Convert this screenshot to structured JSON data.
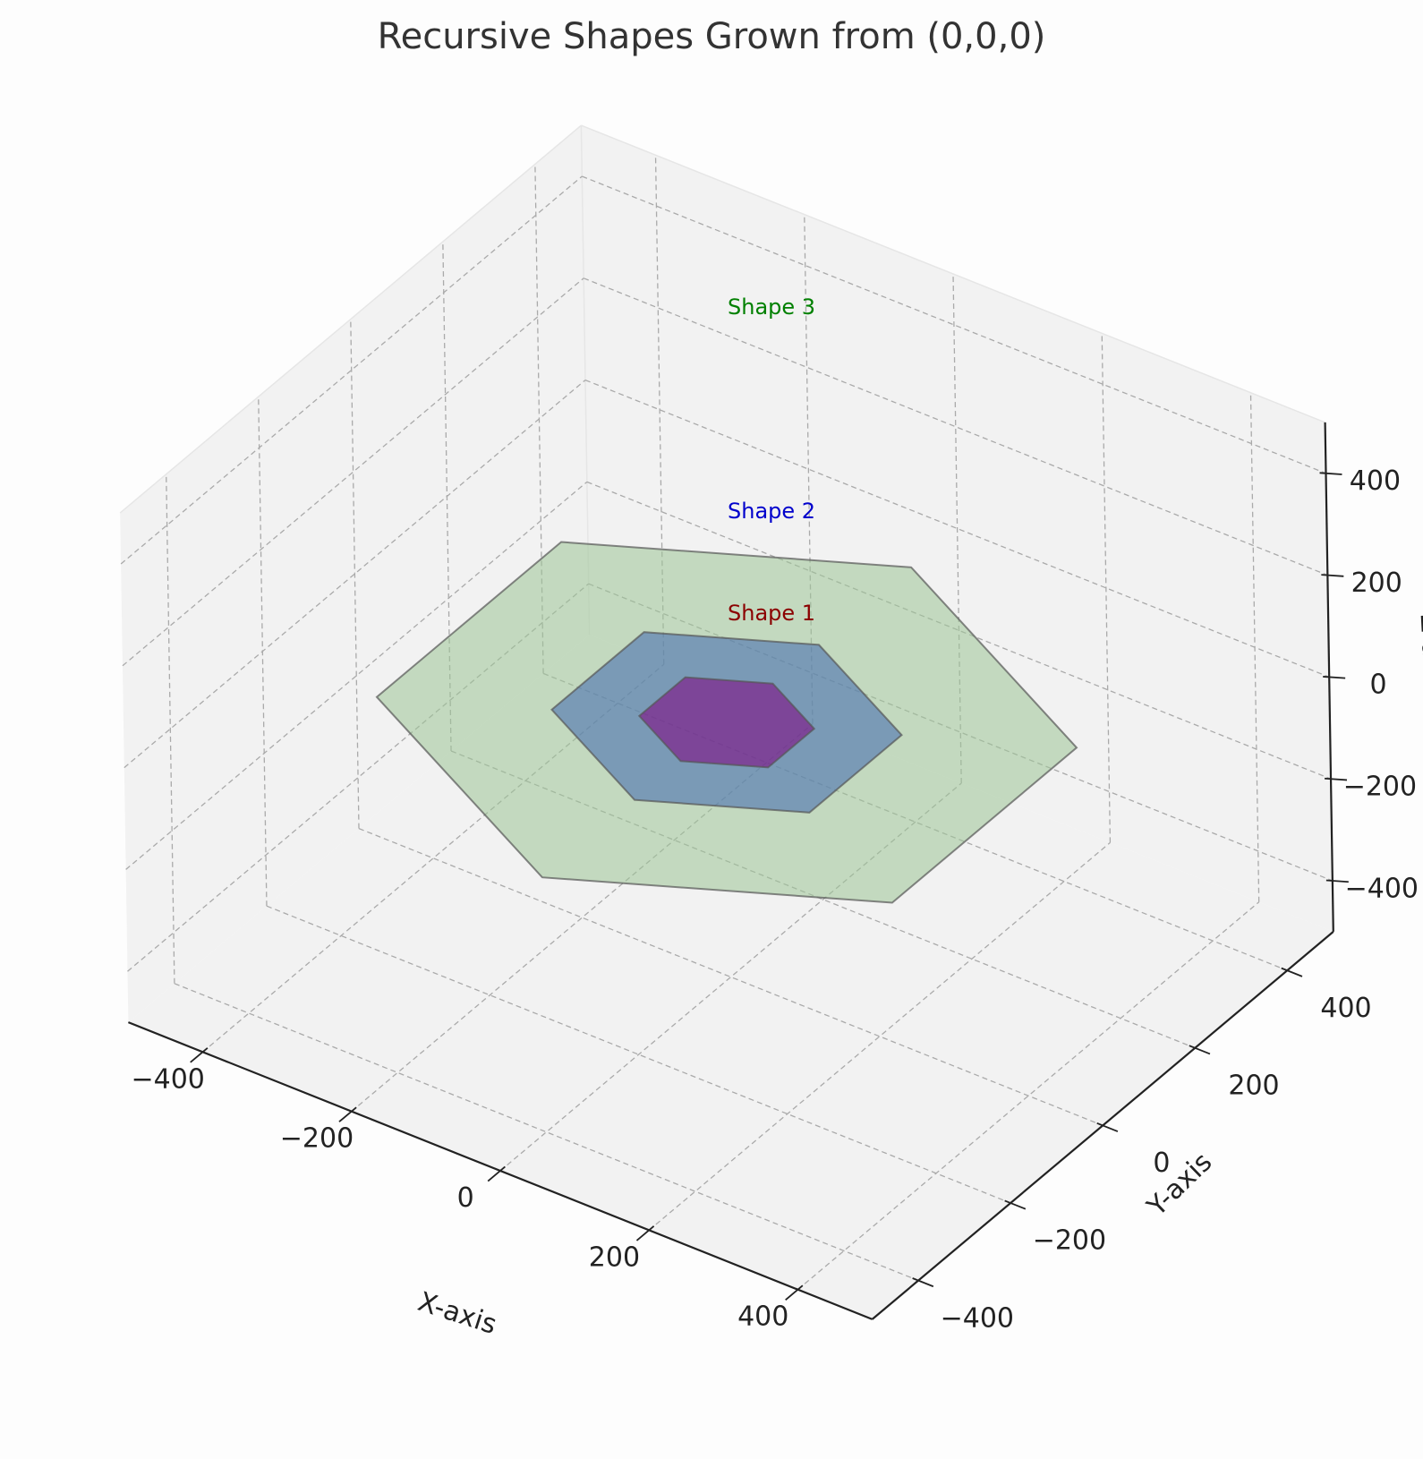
{
  "chart_data": {
    "type": "3d-polygon",
    "title": "Recursive Shapes Grown from (0,0,0)",
    "xlabel": "X-axis",
    "ylabel": "Y-axis",
    "zlabel": "Z-axis",
    "xlim": [
      -500,
      500
    ],
    "ylim": [
      -500,
      500
    ],
    "zlim": [
      -500,
      500
    ],
    "ticks": [
      -400,
      -200,
      0,
      200,
      400
    ],
    "tick_labels": [
      "−400",
      "−200",
      "0",
      "200",
      "400"
    ],
    "grid": true,
    "gridline_style": "dashed",
    "center": [
      0,
      0,
      0
    ],
    "series": [
      {
        "name": "Shape 1",
        "shape": "hexagon",
        "radius": 100,
        "color": "#800080",
        "label_color": "#8b0000",
        "fill_opacity": 0.55
      },
      {
        "name": "Shape 2",
        "shape": "hexagon",
        "radius": 200,
        "color": "#4a6fb0",
        "label_color": "#0000cc",
        "fill_opacity": 0.6
      },
      {
        "name": "Shape 3",
        "shape": "hexagon",
        "radius": 400,
        "color": "#9cc596",
        "label_color": "#008000",
        "fill_opacity": 0.55
      }
    ]
  }
}
